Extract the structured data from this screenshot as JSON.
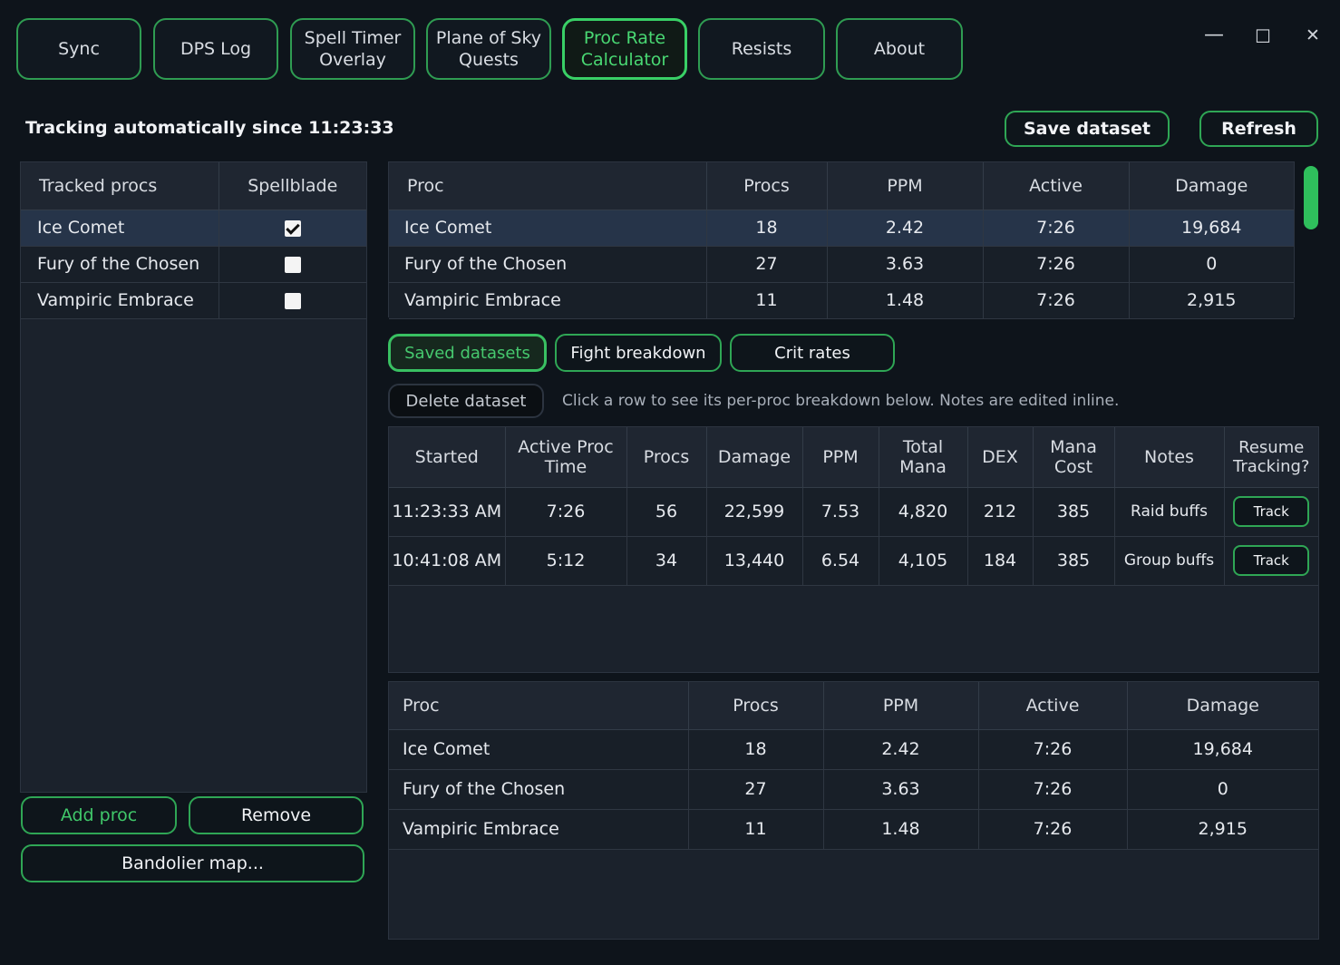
{
  "tabs": [
    {
      "label": "Sync"
    },
    {
      "label": "DPS Log"
    },
    {
      "label": "Spell Timer\nOverlay"
    },
    {
      "label": "Plane of Sky\nQuests"
    },
    {
      "label": "Proc Rate\nCalculator"
    },
    {
      "label": "Resists"
    },
    {
      "label": "About"
    }
  ],
  "window": {
    "minimize": "—",
    "maximize": "☐",
    "close": "✕"
  },
  "status_text": "Tracking automatically since 11:23:33",
  "toolbar": {
    "save_dataset": "Save dataset",
    "refresh": "Refresh"
  },
  "tracked": {
    "headers": {
      "proc": "Tracked procs",
      "spellblade": "Spellblade"
    },
    "rows": [
      {
        "name": "Ice Comet",
        "spellblade": true
      },
      {
        "name": "Fury of the Chosen",
        "spellblade": false
      },
      {
        "name": "Vampiric Embrace",
        "spellblade": false
      }
    ]
  },
  "left_buttons": {
    "add": "Add proc",
    "remove": "Remove",
    "bandolier": "Bandolier map..."
  },
  "live": {
    "headers": {
      "proc": "Proc",
      "procs": "Procs",
      "ppm": "PPM",
      "active": "Active",
      "damage": "Damage"
    },
    "rows": [
      {
        "proc": "Ice Comet",
        "procs": "18",
        "ppm": "2.42",
        "active": "7:26",
        "damage": "19,684"
      },
      {
        "proc": "Fury of the Chosen",
        "procs": "27",
        "ppm": "3.63",
        "active": "7:26",
        "damage": "0"
      },
      {
        "proc": "Vampiric Embrace",
        "procs": "11",
        "ppm": "1.48",
        "active": "7:26",
        "damage": "2,915"
      }
    ]
  },
  "subtabs": {
    "saved": "Saved datasets",
    "fight": "Fight breakdown",
    "crit": "Crit rates"
  },
  "delete_dataset": "Delete dataset",
  "hint": "Click a row to see its per-proc breakdown below. Notes are edited inline.",
  "datasets": {
    "headers": {
      "started": "Started",
      "active_time": "Active Proc\nTime",
      "procs": "Procs",
      "damage": "Damage",
      "ppm": "PPM",
      "total_mana": "Total\nMana",
      "dex": "DEX",
      "mana_cost": "Mana\nCost",
      "notes": "Notes",
      "resume": "Resume\nTracking?"
    },
    "track_label": "Track",
    "rows": [
      {
        "started": "11:23:33 AM",
        "active_time": "7:26",
        "procs": "56",
        "damage": "22,599",
        "ppm": "7.53",
        "total_mana": "4,820",
        "dex": "212",
        "mana_cost": "385",
        "notes": "Raid buffs"
      },
      {
        "started": "10:41:08 AM",
        "active_time": "5:12",
        "procs": "34",
        "damage": "13,440",
        "ppm": "6.54",
        "total_mana": "4,105",
        "dex": "184",
        "mana_cost": "385",
        "notes": "Group buffs"
      }
    ]
  },
  "breakdown": {
    "headers": {
      "proc": "Proc",
      "procs": "Procs",
      "ppm": "PPM",
      "active": "Active",
      "damage": "Damage"
    },
    "rows": [
      {
        "proc": "Ice Comet",
        "procs": "18",
        "ppm": "2.42",
        "active": "7:26",
        "damage": "19,684"
      },
      {
        "proc": "Fury of the Chosen",
        "procs": "27",
        "ppm": "3.63",
        "active": "7:26",
        "damage": "0"
      },
      {
        "proc": "Vampiric Embrace",
        "procs": "11",
        "ppm": "1.48",
        "active": "7:26",
        "damage": "2,915"
      }
    ]
  }
}
